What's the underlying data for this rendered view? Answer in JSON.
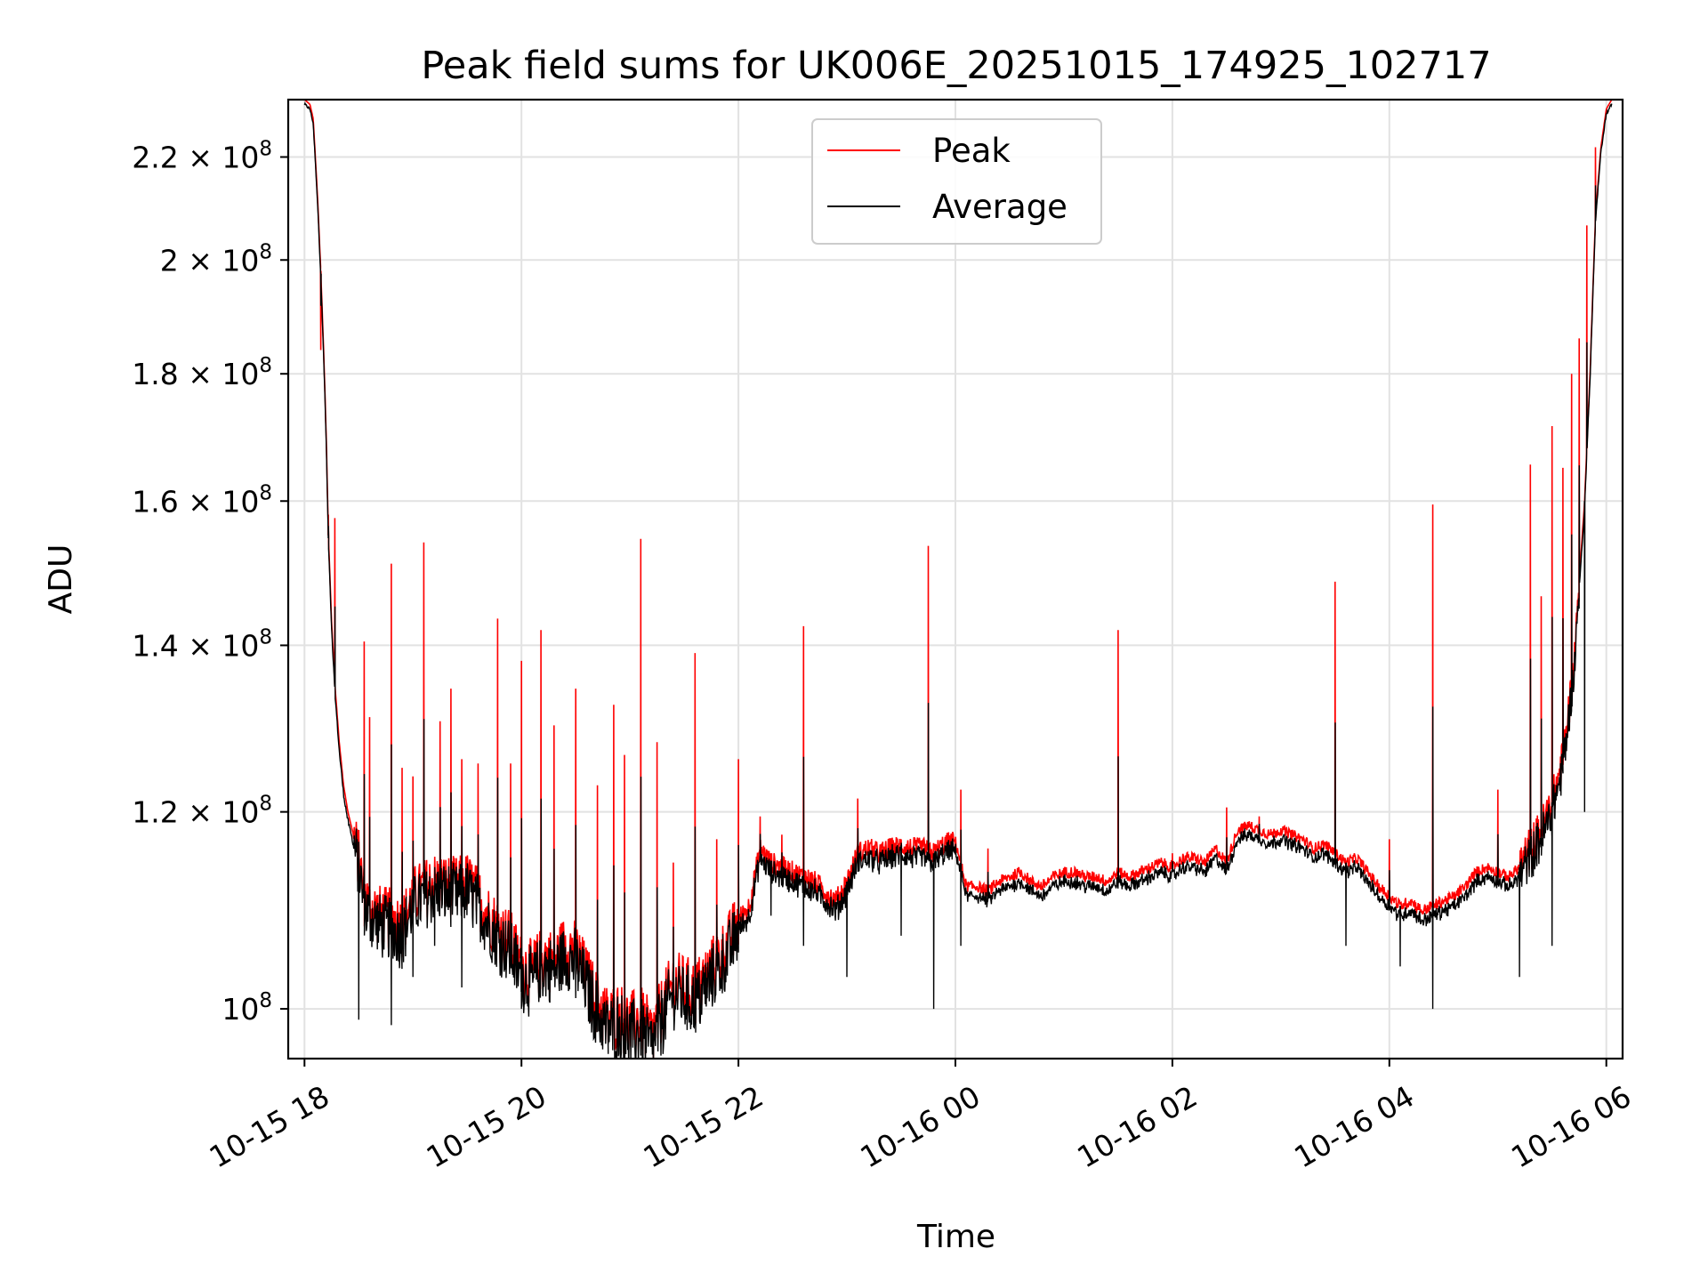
{
  "chart_data": {
    "type": "line",
    "title": "Peak field sums for UK006E_20251015_174925_102717",
    "xlabel": "Time",
    "ylabel": "ADU",
    "y_scale": "log",
    "grid": true,
    "legend_position": "upper-center",
    "x_range_hours": [
      -0.15,
      12.15
    ],
    "ylim": [
      95500000,
      232000000
    ],
    "x_ticks": [
      {
        "hour": 0,
        "label": "10-15 18"
      },
      {
        "hour": 2,
        "label": "10-15 20"
      },
      {
        "hour": 4,
        "label": "10-15 22"
      },
      {
        "hour": 6,
        "label": "10-16 00"
      },
      {
        "hour": 8,
        "label": "10-16 02"
      },
      {
        "hour": 10,
        "label": "10-16 04"
      },
      {
        "hour": 12,
        "label": "10-16 06"
      }
    ],
    "y_ticks": [
      {
        "value": 100000000,
        "mant": "",
        "exp": "8"
      },
      {
        "value": 120000000,
        "mant": "1.2",
        "exp": "8"
      },
      {
        "value": 140000000,
        "mant": "1.4",
        "exp": "8"
      },
      {
        "value": 160000000,
        "mant": "1.6",
        "exp": "8"
      },
      {
        "value": 180000000,
        "mant": "1.8",
        "exp": "8"
      },
      {
        "value": 200000000,
        "mant": "2",
        "exp": "8"
      },
      {
        "value": 220000000,
        "mant": "2.2",
        "exp": "8"
      }
    ],
    "series": [
      {
        "name": "Peak",
        "color": "#ff0000",
        "baseline": [
          [
            0.0,
            232
          ],
          [
            0.05,
            231
          ],
          [
            0.08,
            228
          ],
          [
            0.1,
            220
          ],
          [
            0.12,
            212
          ],
          [
            0.15,
            198
          ],
          [
            0.18,
            182
          ],
          [
            0.2,
            170
          ],
          [
            0.22,
            155
          ],
          [
            0.25,
            143
          ],
          [
            0.28,
            135
          ],
          [
            0.32,
            128
          ],
          [
            0.36,
            123
          ],
          [
            0.4,
            120
          ],
          [
            0.45,
            117.5
          ],
          [
            0.5,
            115
          ],
          [
            0.55,
            111
          ],
          [
            0.6,
            110
          ],
          [
            0.7,
            109
          ],
          [
            0.8,
            108.7
          ],
          [
            0.9,
            108
          ],
          [
            1.0,
            111
          ],
          [
            1.2,
            112.5
          ],
          [
            1.4,
            112
          ],
          [
            1.5,
            112.5
          ],
          [
            1.6,
            111
          ],
          [
            1.7,
            109
          ],
          [
            1.8,
            107.5
          ],
          [
            1.9,
            106.5
          ],
          [
            2.0,
            104
          ],
          [
            2.1,
            103.5
          ],
          [
            2.2,
            105
          ],
          [
            2.3,
            104.5
          ],
          [
            2.4,
            106
          ],
          [
            2.5,
            105.5
          ],
          [
            2.6,
            103
          ],
          [
            2.7,
            100.5
          ],
          [
            2.8,
            99
          ],
          [
            2.9,
            99.5
          ],
          [
            3.0,
            98.5
          ],
          [
            3.1,
            99
          ],
          [
            3.2,
            97.5
          ],
          [
            3.3,
            100
          ],
          [
            3.4,
            102.5
          ],
          [
            3.5,
            102
          ],
          [
            3.6,
            101.5
          ],
          [
            3.7,
            103
          ],
          [
            3.8,
            104.5
          ],
          [
            3.9,
            106
          ],
          [
            4.0,
            108.5
          ],
          [
            4.1,
            110
          ],
          [
            4.2,
            116
          ],
          [
            4.3,
            114.5
          ],
          [
            4.4,
            114
          ],
          [
            4.5,
            113.5
          ],
          [
            4.6,
            113
          ],
          [
            4.7,
            112.5
          ],
          [
            4.8,
            111.5
          ],
          [
            4.9,
            110.5
          ],
          [
            5.0,
            112.5
          ],
          [
            5.1,
            115.5
          ],
          [
            5.2,
            116
          ],
          [
            5.3,
            115.5
          ],
          [
            5.4,
            116
          ],
          [
            5.5,
            116.3
          ],
          [
            5.6,
            116
          ],
          [
            5.7,
            116
          ],
          [
            5.8,
            115.5
          ],
          [
            5.9,
            116.5
          ],
          [
            6.0,
            116.8
          ],
          [
            6.1,
            112
          ],
          [
            6.2,
            112
          ],
          [
            6.3,
            111.5
          ],
          [
            6.4,
            112.5
          ],
          [
            6.5,
            113
          ],
          [
            6.6,
            113.5
          ],
          [
            6.7,
            112.5
          ],
          [
            6.8,
            112
          ],
          [
            6.9,
            113
          ],
          [
            7.0,
            113.5
          ],
          [
            7.1,
            113.5
          ],
          [
            7.2,
            113
          ],
          [
            7.3,
            113
          ],
          [
            7.4,
            112.5
          ],
          [
            7.5,
            113.5
          ],
          [
            7.6,
            113
          ],
          [
            7.7,
            113.5
          ],
          [
            7.8,
            114
          ],
          [
            7.9,
            114.5
          ],
          [
            8.0,
            114
          ],
          [
            8.1,
            115
          ],
          [
            8.2,
            115
          ],
          [
            8.3,
            114.5
          ],
          [
            8.4,
            116
          ],
          [
            8.5,
            114.5
          ],
          [
            8.6,
            118
          ],
          [
            8.7,
            118.5
          ],
          [
            8.8,
            118
          ],
          [
            8.9,
            117.5
          ],
          [
            9.0,
            118
          ],
          [
            9.1,
            117.5
          ],
          [
            9.2,
            117
          ],
          [
            9.3,
            116
          ],
          [
            9.4,
            116.5
          ],
          [
            9.5,
            115.5
          ],
          [
            9.6,
            114.5
          ],
          [
            9.7,
            115
          ],
          [
            9.8,
            113.5
          ],
          [
            9.9,
            112
          ],
          [
            10.0,
            111
          ],
          [
            10.1,
            110
          ],
          [
            10.2,
            110.5
          ],
          [
            10.3,
            109.5
          ],
          [
            10.4,
            110
          ],
          [
            10.5,
            110.5
          ],
          [
            10.6,
            111
          ],
          [
            10.7,
            112
          ],
          [
            10.8,
            113.5
          ],
          [
            10.9,
            114
          ],
          [
            11.0,
            113.5
          ],
          [
            11.1,
            113
          ],
          [
            11.2,
            114
          ],
          [
            11.3,
            116
          ],
          [
            11.4,
            118
          ],
          [
            11.5,
            121
          ],
          [
            11.6,
            126
          ],
          [
            11.7,
            137
          ],
          [
            11.8,
            160
          ],
          [
            11.85,
            180
          ],
          [
            11.9,
            208
          ],
          [
            11.95,
            222
          ],
          [
            12.0,
            230
          ],
          [
            12.05,
            232
          ]
        ],
        "spikes": [
          [
            0.15,
            184
          ],
          [
            0.22,
            158
          ],
          [
            0.28,
            157.5
          ],
          [
            0.55,
            140.5
          ],
          [
            0.6,
            131
          ],
          [
            0.8,
            151
          ],
          [
            0.9,
            125
          ],
          [
            1.0,
            124
          ],
          [
            1.1,
            154
          ],
          [
            1.25,
            130.5
          ],
          [
            1.35,
            134.5
          ],
          [
            1.45,
            126
          ],
          [
            1.6,
            125.5
          ],
          [
            1.78,
            143.5
          ],
          [
            1.9,
            125.5
          ],
          [
            2.0,
            138
          ],
          [
            2.18,
            142
          ],
          [
            2.3,
            130
          ],
          [
            2.5,
            134.5
          ],
          [
            2.7,
            123
          ],
          [
            2.85,
            132.5
          ],
          [
            2.95,
            126.5
          ],
          [
            3.1,
            154.5
          ],
          [
            3.25,
            128
          ],
          [
            3.4,
            114.5
          ],
          [
            3.6,
            139
          ],
          [
            3.8,
            117
          ],
          [
            4.0,
            126
          ],
          [
            4.2,
            119.5
          ],
          [
            4.4,
            117.5
          ],
          [
            4.6,
            142.5
          ],
          [
            5.1,
            121.5
          ],
          [
            5.5,
            117
          ],
          [
            5.75,
            153.5
          ],
          [
            6.05,
            122.5
          ],
          [
            6.3,
            116
          ],
          [
            7.5,
            142
          ],
          [
            8.0,
            115.5
          ],
          [
            8.5,
            120.5
          ],
          [
            8.8,
            119.5
          ],
          [
            9.5,
            148.5
          ],
          [
            10.0,
            117
          ],
          [
            10.4,
            159.5
          ],
          [
            11.0,
            122.5
          ],
          [
            11.3,
            165.5
          ],
          [
            11.4,
            146.5
          ],
          [
            11.5,
            171.5
          ],
          [
            11.6,
            165
          ],
          [
            11.68,
            180
          ],
          [
            11.75,
            186
          ],
          [
            11.82,
            206.5
          ],
          [
            11.9,
            222
          ]
        ]
      },
      {
        "name": "Average",
        "color": "#000000",
        "offset": -1.0,
        "spike_scale": 0.45,
        "dips": [
          [
            0.5,
            99
          ],
          [
            0.8,
            98.5
          ],
          [
            1.0,
            103
          ],
          [
            1.2,
            106
          ],
          [
            1.45,
            102
          ],
          [
            2.0,
            100
          ],
          [
            2.5,
            101
          ],
          [
            2.8,
            96.8
          ],
          [
            2.95,
            98
          ],
          [
            3.15,
            96
          ],
          [
            3.3,
            101
          ],
          [
            3.8,
            104
          ],
          [
            4.0,
            107
          ],
          [
            4.3,
            109
          ],
          [
            4.6,
            106
          ],
          [
            5.0,
            103
          ],
          [
            5.5,
            107
          ],
          [
            5.8,
            100
          ],
          [
            6.05,
            106
          ],
          [
            7.5,
            112
          ],
          [
            9.6,
            106
          ],
          [
            10.1,
            104
          ],
          [
            10.4,
            100
          ],
          [
            11.2,
            103
          ],
          [
            11.5,
            106
          ],
          [
            11.8,
            120
          ]
        ]
      }
    ]
  }
}
